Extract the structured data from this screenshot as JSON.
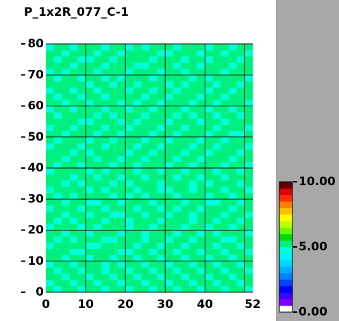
{
  "chart_data": {
    "type": "heatmap",
    "title": "P_1x2R_077_C-1",
    "xlim": [
      0,
      52
    ],
    "ylim": [
      0,
      80
    ],
    "xticks": [
      0,
      10,
      20,
      30,
      40,
      52
    ],
    "yticks": [
      0,
      10,
      20,
      30,
      40,
      50,
      60,
      70,
      80
    ],
    "xgrid": [
      10,
      20,
      30,
      40,
      50
    ],
    "grid": true,
    "zlim": [
      0,
      10
    ],
    "zticks": [
      {
        "value": 0,
        "label": "0.00"
      },
      {
        "value": 5,
        "label": "5.00"
      },
      {
        "value": 10,
        "label": "10.00"
      }
    ],
    "colorscale": [
      "#ffffff",
      "#8000ff",
      "#4000ff",
      "#0000ff",
      "#0040ff",
      "#0080ff",
      "#00b0ff",
      "#00d8ff",
      "#00f0ff",
      "#00ffd8",
      "#00f080",
      "#00d800",
      "#60ff00",
      "#c0ff00",
      "#ffff00",
      "#ffc000",
      "#ff8000",
      "#ff3000",
      "#e00000",
      "#600000"
    ],
    "z": [
      [
        5.1,
        4.8,
        5.2,
        5.0,
        4.7,
        5.3,
        5.1,
        4.9,
        5.2,
        5.0,
        4.8,
        5.1,
        5.3,
        4.9,
        5.0,
        5.2,
        4.7,
        5.1,
        5.0,
        4.9,
        5.2,
        5.1,
        4.8,
        5.0,
        5.3,
        4.9
      ],
      [
        4.9,
        5.2,
        5.0,
        4.8,
        5.1,
        5.0,
        4.7,
        5.2,
        5.1,
        4.9,
        5.3,
        5.0,
        4.8,
        5.2,
        5.1,
        4.9,
        5.0,
        5.3,
        4.8,
        5.1,
        5.0,
        4.9,
        5.2,
        5.1,
        4.8,
        5.0
      ],
      [
        5.2,
        5.0,
        4.9,
        5.3,
        5.0,
        4.8,
        5.2,
        5.1,
        4.9,
        5.0,
        5.2,
        4.8,
        5.1,
        5.0,
        4.7,
        5.1,
        5.2,
        4.9,
        5.0,
        5.3,
        4.8,
        5.1,
        5.0,
        4.9,
        5.2,
        5.1
      ],
      [
        5.0,
        4.7,
        5.1,
        5.2,
        4.9,
        5.1,
        5.0,
        4.8,
        5.3,
        5.1,
        4.9,
        5.0,
        5.2,
        4.8,
        5.1,
        5.0,
        4.9,
        5.2,
        5.1,
        4.8,
        5.0,
        5.2,
        4.9,
        5.1,
        5.0,
        4.8
      ],
      [
        4.8,
        5.1,
        5.0,
        4.9,
        5.2,
        5.0,
        5.1,
        4.9,
        5.0,
        4.8,
        5.1,
        5.3,
        4.9,
        5.0,
        5.2,
        4.8,
        5.1,
        5.0,
        4.9,
        5.1,
        5.2,
        4.8,
        5.0,
        5.3,
        4.9,
        5.1
      ],
      [
        5.1,
        5.0,
        4.8,
        5.1,
        5.0,
        4.7,
        5.2,
        5.0,
        4.9,
        5.2,
        5.0,
        4.9,
        5.1,
        5.3,
        4.8,
        5.0,
        5.2,
        4.9,
        5.1,
        5.0,
        4.8,
        5.1,
        5.2,
        4.9,
        5.0,
        5.2
      ],
      [
        5.0,
        5.2,
        5.1,
        4.9,
        4.8,
        5.1,
        5.0,
        5.3,
        5.1,
        4.9,
        4.8,
        5.1,
        5.0,
        4.9,
        5.1,
        5.2,
        4.8,
        5.0,
        5.2,
        4.9,
        5.1,
        5.0,
        4.8,
        5.1,
        5.2,
        4.9
      ],
      [
        4.9,
        5.0,
        5.2,
        5.1,
        5.0,
        4.9,
        4.8,
        5.1,
        5.0,
        5.2,
        5.1,
        4.8,
        5.2,
        5.0,
        4.9,
        5.1,
        5.0,
        4.7,
        5.1,
        5.2,
        5.0,
        4.9,
        5.1,
        5.0,
        4.8,
        5.1
      ],
      [
        5.2,
        4.8,
        5.0,
        4.9,
        5.2,
        5.1,
        5.0,
        4.9,
        4.8,
        5.1,
        5.0,
        5.2,
        4.9,
        5.1,
        5.0,
        4.8,
        5.2,
        5.1,
        4.9,
        5.0,
        5.3,
        5.1,
        4.9,
        4.8,
        5.1,
        5.0
      ],
      [
        5.0,
        5.1,
        4.9,
        5.2,
        5.0,
        4.8,
        5.1,
        5.2,
        5.0,
        4.9,
        5.1,
        5.0,
        4.8,
        5.2,
        5.1,
        5.0,
        4.9,
        5.1,
        5.2,
        4.8,
        5.0,
        4.9,
        5.2,
        5.1,
        5.0,
        4.8
      ],
      [
        4.8,
        5.0,
        5.1,
        5.0,
        4.9,
        5.2,
        4.9,
        5.0,
        5.1,
        5.3,
        4.8,
        5.1,
        5.0,
        4.9,
        5.2,
        5.1,
        5.0,
        4.8,
        5.0,
        5.1,
        4.9,
        5.2,
        5.0,
        4.9,
        5.1,
        5.2
      ],
      [
        5.1,
        4.9,
        5.0,
        4.8,
        5.1,
        5.0,
        5.2,
        4.8,
        5.0,
        5.1,
        4.9,
        5.0,
        5.2,
        5.1,
        4.8,
        5.0,
        5.1,
        5.2,
        4.9,
        5.0,
        5.1,
        4.8,
        5.1,
        5.2,
        4.9,
        5.0
      ],
      [
        5.0,
        5.2,
        4.9,
        5.1,
        5.0,
        4.9,
        5.1,
        5.0,
        4.9,
        4.8,
        5.2,
        5.1,
        4.9,
        5.0,
        5.1,
        4.9,
        5.0,
        5.1,
        4.8,
        5.2,
        5.0,
        5.1,
        4.9,
        5.0,
        5.2,
        4.9
      ],
      [
        4.9,
        5.0,
        5.1,
        5.2,
        4.8,
        5.1,
        5.0,
        4.9,
        5.2,
        5.0,
        5.1,
        4.8,
        5.0,
        5.1,
        4.9,
        5.2,
        4.8,
        5.0,
        5.1,
        4.9,
        5.2,
        5.0,
        5.0,
        4.8,
        5.1,
        5.0
      ],
      [
        5.2,
        5.1,
        4.8,
        5.0,
        5.1,
        4.9,
        4.8,
        5.2,
        5.1,
        4.9,
        5.0,
        5.2,
        5.1,
        4.8,
        5.0,
        5.1,
        5.2,
        4.9,
        5.0,
        5.1,
        4.8,
        4.9,
        5.2,
        5.1,
        4.9,
        5.1
      ],
      [
        5.0,
        4.8,
        5.1,
        4.9,
        5.2,
        5.0,
        5.1,
        5.0,
        4.8,
        5.1,
        4.9,
        5.0,
        4.8,
        5.2,
        5.1,
        5.0,
        4.9,
        5.1,
        5.2,
        5.0,
        4.9,
        5.1,
        5.0,
        4.9,
        5.0,
        5.2
      ],
      [
        4.9,
        5.1,
        5.0,
        5.2,
        5.0,
        4.8,
        5.1,
        4.9,
        5.0,
        5.2,
        5.1,
        4.9,
        5.0,
        5.1,
        4.8,
        4.9,
        5.1,
        5.0,
        4.8,
        5.1,
        5.2,
        5.0,
        4.8,
        5.1,
        5.2,
        4.9
      ],
      [
        5.1,
        5.0,
        4.9,
        5.1,
        4.8,
        5.2,
        5.0,
        5.1,
        4.9,
        5.0,
        4.8,
        5.1,
        5.2,
        5.0,
        4.9,
        5.1,
        5.0,
        5.2,
        4.9,
        5.0,
        4.9,
        5.1,
        5.2,
        5.0,
        4.8,
        5.1
      ],
      [
        5.0,
        5.2,
        5.1,
        4.8,
        5.0,
        5.1,
        4.9,
        5.0,
        5.2,
        4.8,
        5.1,
        5.0,
        4.9,
        5.1,
        5.2,
        5.0,
        4.8,
        5.1,
        5.0,
        4.9,
        5.1,
        5.0,
        4.9,
        5.2,
        5.1,
        5.0
      ],
      [
        4.8,
        5.0,
        5.2,
        5.0,
        5.1,
        4.9,
        5.2,
        4.8,
        5.1,
        5.0,
        5.2,
        4.9,
        5.1,
        5.0,
        4.8,
        5.2,
        5.1,
        4.9,
        5.1,
        5.2,
        5.0,
        4.8,
        5.1,
        5.0,
        4.9,
        5.2
      ],
      [
        5.1,
        4.9,
        5.0,
        5.1,
        4.9,
        5.0,
        5.1,
        5.2,
        4.9,
        5.1,
        5.0,
        4.8,
        5.0,
        5.2,
        5.1,
        4.9,
        5.0,
        5.1,
        4.8,
        5.0,
        5.1,
        5.2,
        4.9,
        5.1,
        5.0,
        4.8
      ],
      [
        5.0,
        5.1,
        4.8,
        5.2,
        5.0,
        5.1,
        4.8,
        5.0,
        5.1,
        4.9,
        5.2,
        5.0,
        4.9,
        5.1,
        5.0,
        5.1,
        4.9,
        5.0,
        5.2,
        4.9,
        5.0,
        5.1,
        5.0,
        4.8,
        5.2,
        5.1
      ],
      [
        5.2,
        5.0,
        5.1,
        4.9,
        5.1,
        4.8,
        5.0,
        5.1,
        5.0,
        5.2,
        4.9,
        5.1,
        5.0,
        4.8,
        5.2,
        5.0,
        5.1,
        4.9,
        5.0,
        5.1,
        4.8,
        5.0,
        5.2,
        5.1,
        4.9,
        5.0
      ],
      [
        4.9,
        5.1,
        5.0,
        5.0,
        4.8,
        5.2,
        5.1,
        4.9,
        5.2,
        5.0,
        5.1,
        4.9,
        5.2,
        5.0,
        4.9,
        5.1,
        5.0,
        5.2,
        4.8,
        5.0,
        5.2,
        4.9,
        5.1,
        5.0,
        5.1,
        4.9
      ],
      [
        5.0,
        4.8,
        5.2,
        5.1,
        5.0,
        4.9,
        5.0,
        5.2,
        4.8,
        5.1,
        5.0,
        5.2,
        4.8,
        5.1,
        5.0,
        4.9,
        5.2,
        5.0,
        5.1,
        4.9,
        5.0,
        5.1,
        4.8,
        5.2,
        5.0,
        5.1
      ],
      [
        5.1,
        5.0,
        4.9,
        5.0,
        5.2,
        5.1,
        4.9,
        5.0,
        5.1,
        4.8,
        5.0,
        5.1,
        5.0,
        4.9,
        5.1,
        5.2,
        4.8,
        5.1,
        5.0,
        5.2,
        4.9,
        5.0,
        5.1,
        4.9,
        4.8,
        5.0
      ],
      [
        4.8,
        5.2,
        5.0,
        4.9,
        5.1,
        5.0,
        5.2,
        4.8,
        5.0,
        5.1,
        4.9,
        5.0,
        5.1,
        5.2,
        4.8,
        5.0,
        5.1,
        4.9,
        5.2,
        5.0,
        5.1,
        4.8,
        5.0,
        5.1,
        5.2,
        4.9
      ],
      [
        5.0,
        5.1,
        5.2,
        5.0,
        4.9,
        4.8,
        5.1,
        5.0,
        5.1,
        4.9,
        5.2,
        4.8,
        5.0,
        5.1,
        5.0,
        4.9,
        5.0,
        5.2,
        5.0,
        4.8,
        5.1,
        5.2,
        4.9,
        5.0,
        5.1,
        5.0
      ],
      [
        5.2,
        4.9,
        5.0,
        5.1,
        5.0,
        5.2,
        4.9,
        5.1,
        4.9,
        5.0,
        5.1,
        5.2,
        4.9,
        5.0,
        5.2,
        5.1,
        4.9,
        5.0,
        4.8,
        5.1,
        5.0,
        4.9,
        5.1,
        5.2,
        4.9,
        5.1
      ],
      [
        4.9,
        5.0,
        5.1,
        4.8,
        5.2,
        5.0,
        5.0,
        4.9,
        5.2,
        5.1,
        4.8,
        5.0,
        5.2,
        4.9,
        5.0,
        5.1,
        5.2,
        4.8,
        5.1,
        5.0,
        4.9,
        5.1,
        5.0,
        4.8,
        5.0,
        5.2
      ],
      [
        5.1,
        5.2,
        4.9,
        5.0,
        5.1,
        4.9,
        5.2,
        5.0,
        5.0,
        4.8,
        5.1,
        4.9,
        5.1,
        5.0,
        4.8,
        5.2,
        5.0,
        5.1,
        4.9,
        5.2,
        5.0,
        4.8,
        5.1,
        5.0,
        5.2,
        4.9
      ],
      [
        5.0,
        4.9,
        5.1,
        5.2,
        4.8,
        5.1,
        5.0,
        4.9,
        5.1,
        5.0,
        5.2,
        5.0,
        4.8,
        5.2,
        5.1,
        4.9,
        5.0,
        5.2,
        5.1,
        4.9,
        5.1,
        5.0,
        4.9,
        5.1,
        5.0,
        5.1
      ],
      [
        4.8,
        5.1,
        5.0,
        4.9,
        5.0,
        5.2,
        4.8,
        5.1,
        5.0,
        5.2,
        4.9,
        5.1,
        5.0,
        4.9,
        5.1,
        5.0,
        4.8,
        5.1,
        5.0,
        5.1,
        4.8,
        5.2,
        5.0,
        4.9,
        5.1,
        5.0
      ],
      [
        5.1,
        5.0,
        5.2,
        5.0,
        5.1,
        4.9,
        5.0,
        5.2,
        4.8,
        5.0,
        5.1,
        4.9,
        5.2,
        5.1,
        5.0,
        4.8,
        5.1,
        4.9,
        5.2,
        5.0,
        5.1,
        4.9,
        5.0,
        5.2,
        4.8,
        5.1
      ],
      [
        5.0,
        4.8,
        5.0,
        5.1,
        4.9,
        5.0,
        5.1,
        4.8,
        5.1,
        4.9,
        5.0,
        5.2,
        5.0,
        4.8,
        5.2,
        5.1,
        5.0,
        5.1,
        4.9,
        5.0,
        4.9,
        5.1,
        5.2,
        5.0,
        5.1,
        4.9
      ],
      [
        4.9,
        5.1,
        4.9,
        5.2,
        5.0,
        5.1,
        4.9,
        5.0,
        5.2,
        5.1,
        4.8,
        5.0,
        5.1,
        5.0,
        4.9,
        5.0,
        5.2,
        4.8,
        5.0,
        5.1,
        5.2,
        5.0,
        4.8,
        5.1,
        5.0,
        5.2
      ],
      [
        5.2,
        5.0,
        5.1,
        4.8,
        5.1,
        5.0,
        5.2,
        4.9,
        5.0,
        5.0,
        5.1,
        4.9,
        4.8,
        5.1,
        5.0,
        5.2,
        4.9,
        5.1,
        5.0,
        4.8,
        5.0,
        5.1,
        5.0,
        4.9,
        5.2,
        5.0
      ],
      [
        5.0,
        4.9,
        5.0,
        5.1,
        4.9,
        4.8,
        5.0,
        5.1,
        4.9,
        5.2,
        5.0,
        5.1,
        5.0,
        4.9,
        5.1,
        5.0,
        5.1,
        4.9,
        5.2,
        5.1,
        4.9,
        5.0,
        5.1,
        5.2,
        4.9,
        5.1
      ],
      [
        5.1,
        5.2,
        4.8,
        5.0,
        5.2,
        5.1,
        4.9,
        5.0,
        5.1,
        4.8,
        5.2,
        5.0,
        5.1,
        5.2,
        4.9,
        4.8,
        5.0,
        5.2,
        5.0,
        4.9,
        5.1,
        5.2,
        4.9,
        5.0,
        5.1,
        4.9
      ],
      [
        4.9,
        5.0,
        5.1,
        4.9,
        5.0,
        5.2,
        5.1,
        4.8,
        5.0,
        5.1,
        4.9,
        5.2,
        4.9,
        5.0,
        5.1,
        5.0,
        4.9,
        5.0,
        5.1,
        5.2,
        4.8,
        5.0,
        5.1,
        4.9,
        5.0,
        5.2
      ]
    ]
  }
}
